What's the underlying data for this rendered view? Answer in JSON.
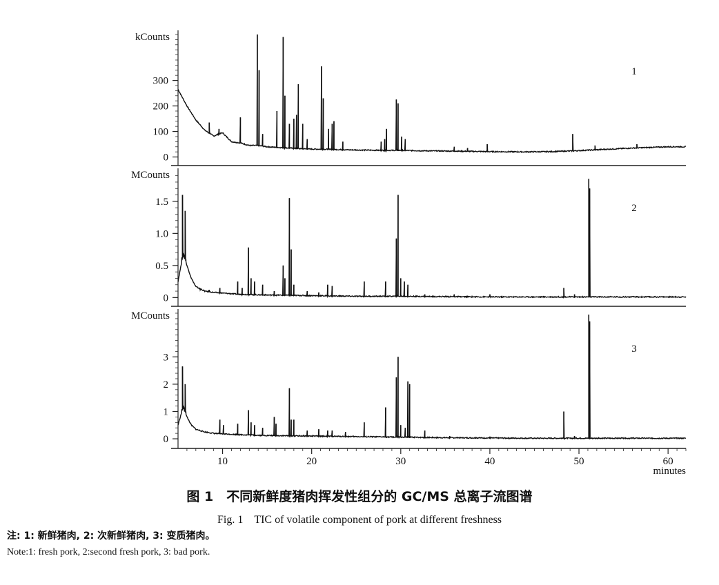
{
  "figure": {
    "caption_cn": "图 1　不同新鲜度猪肉挥发性组分的 GC/MS 总离子流图谱",
    "caption_en": "Fig. 1　TIC of volatile component of pork at different freshness",
    "note_cn": "注: 1: 新鲜猪肉, 2: 次新鲜猪肉, 3: 变质猪肉。",
    "note_en": "Note:1: fresh pork, 2:second fresh pork, 3: bad pork."
  },
  "chart_data": [
    {
      "type": "line",
      "panel_label": "1",
      "ylabel": "kCounts",
      "xlabel": "",
      "xlim": [
        5,
        62
      ],
      "ylim": [
        -12,
        480
      ],
      "y_ticks": [
        0,
        100,
        200,
        300
      ],
      "x_ticks": [],
      "clipped_at_top": true,
      "baseline": [
        [
          5,
          265
        ],
        [
          6,
          200
        ],
        [
          7,
          145
        ],
        [
          8,
          105
        ],
        [
          9,
          82
        ],
        [
          10,
          95
        ],
        [
          11,
          60
        ],
        [
          12,
          55
        ],
        [
          13,
          45
        ],
        [
          14,
          45
        ],
        [
          15,
          40
        ],
        [
          16,
          38
        ],
        [
          17,
          36
        ],
        [
          18,
          34
        ],
        [
          19,
          32
        ],
        [
          20,
          31
        ],
        [
          22,
          30
        ],
        [
          24,
          28
        ],
        [
          26,
          27
        ],
        [
          28,
          26
        ],
        [
          30,
          26
        ],
        [
          33,
          24
        ],
        [
          36,
          23
        ],
        [
          40,
          21
        ],
        [
          44,
          20
        ],
        [
          47,
          21
        ],
        [
          50,
          25
        ],
        [
          53,
          30
        ],
        [
          56,
          35
        ],
        [
          60,
          40
        ],
        [
          62,
          40
        ]
      ],
      "peaks": [
        [
          8.5,
          135
        ],
        [
          9.6,
          110
        ],
        [
          12.0,
          155
        ],
        [
          13.9,
          480
        ],
        [
          14.1,
          340
        ],
        [
          14.5,
          90
        ],
        [
          16.1,
          180
        ],
        [
          16.8,
          470
        ],
        [
          17.0,
          240
        ],
        [
          17.5,
          130
        ],
        [
          18.0,
          150
        ],
        [
          18.3,
          165
        ],
        [
          18.5,
          285
        ],
        [
          19.0,
          130
        ],
        [
          19.5,
          70
        ],
        [
          21.1,
          355
        ],
        [
          21.3,
          230
        ],
        [
          21.9,
          110
        ],
        [
          22.3,
          130
        ],
        [
          22.5,
          140
        ],
        [
          23.5,
          60
        ],
        [
          27.8,
          60
        ],
        [
          28.2,
          70
        ],
        [
          28.4,
          110
        ],
        [
          29.5,
          225
        ],
        [
          29.7,
          210
        ],
        [
          30.1,
          80
        ],
        [
          30.5,
          70
        ],
        [
          36.0,
          40
        ],
        [
          37.5,
          35
        ],
        [
          39.7,
          50
        ],
        [
          49.3,
          90
        ],
        [
          51.8,
          45
        ],
        [
          56.5,
          50
        ]
      ]
    },
    {
      "type": "line",
      "panel_label": "2",
      "ylabel": "MCounts",
      "xlabel": "",
      "xlim": [
        5,
        62
      ],
      "ylim": [
        -0.05,
        1.95
      ],
      "y_ticks": [
        0,
        0.5,
        1.0,
        1.5
      ],
      "x_ticks": [],
      "baseline": [
        [
          5,
          0.25
        ],
        [
          5.6,
          0.7
        ],
        [
          6,
          0.5
        ],
        [
          6.5,
          0.3
        ],
        [
          7,
          0.17
        ],
        [
          8,
          0.1
        ],
        [
          9,
          0.08
        ],
        [
          10,
          0.07
        ],
        [
          12,
          0.05
        ],
        [
          15,
          0.04
        ],
        [
          20,
          0.03
        ],
        [
          25,
          0.02
        ],
        [
          30,
          0.02
        ],
        [
          40,
          0.01
        ],
        [
          50,
          0.01
        ],
        [
          62,
          0.01
        ]
      ],
      "peaks": [
        [
          5.5,
          1.6
        ],
        [
          5.8,
          1.35
        ],
        [
          7.5,
          0.12
        ],
        [
          8.5,
          0.12
        ],
        [
          9.7,
          0.15
        ],
        [
          11.7,
          0.25
        ],
        [
          12.2,
          0.15
        ],
        [
          12.9,
          0.78
        ],
        [
          13.2,
          0.3
        ],
        [
          13.6,
          0.25
        ],
        [
          14.5,
          0.2
        ],
        [
          15.8,
          0.1
        ],
        [
          16.8,
          0.5
        ],
        [
          17.0,
          0.3
        ],
        [
          17.5,
          1.55
        ],
        [
          17.7,
          0.75
        ],
        [
          18.0,
          0.2
        ],
        [
          19.5,
          0.1
        ],
        [
          20.8,
          0.08
        ],
        [
          21.8,
          0.2
        ],
        [
          22.3,
          0.18
        ],
        [
          25.9,
          0.25
        ],
        [
          28.3,
          0.25
        ],
        [
          29.5,
          0.92
        ],
        [
          29.7,
          1.6
        ],
        [
          30.0,
          0.3
        ],
        [
          30.4,
          0.25
        ],
        [
          30.8,
          0.2
        ],
        [
          32.7,
          0.05
        ],
        [
          36.0,
          0.05
        ],
        [
          40.0,
          0.05
        ],
        [
          48.3,
          0.15
        ],
        [
          49.5,
          0.05
        ],
        [
          51.1,
          1.85
        ],
        [
          51.2,
          1.7
        ]
      ]
    },
    {
      "type": "line",
      "panel_label": "3",
      "ylabel": "MCounts",
      "xlabel": "minutes",
      "xlim": [
        5,
        62
      ],
      "ylim": [
        -0.15,
        4.6
      ],
      "y_ticks": [
        0,
        1,
        2,
        3
      ],
      "x_ticks": [
        10,
        20,
        30,
        40,
        50,
        60
      ],
      "baseline": [
        [
          5,
          0.5
        ],
        [
          5.6,
          1.2
        ],
        [
          6,
          0.8
        ],
        [
          6.5,
          0.5
        ],
        [
          7,
          0.35
        ],
        [
          8,
          0.25
        ],
        [
          9,
          0.2
        ],
        [
          10,
          0.18
        ],
        [
          12,
          0.15
        ],
        [
          15,
          0.12
        ],
        [
          20,
          0.1
        ],
        [
          25,
          0.08
        ],
        [
          30,
          0.06
        ],
        [
          35,
          0.04
        ],
        [
          40,
          0.03
        ],
        [
          45,
          0.02
        ],
        [
          50,
          0.02
        ],
        [
          62,
          0.02
        ]
      ],
      "peaks": [
        [
          5.5,
          2.65
        ],
        [
          5.8,
          2.0
        ],
        [
          9.7,
          0.7
        ],
        [
          10.1,
          0.5
        ],
        [
          11.7,
          0.55
        ],
        [
          12.9,
          1.05
        ],
        [
          13.2,
          0.6
        ],
        [
          13.6,
          0.5
        ],
        [
          14.5,
          0.4
        ],
        [
          15.8,
          0.8
        ],
        [
          16.0,
          0.55
        ],
        [
          17.5,
          1.85
        ],
        [
          17.7,
          0.7
        ],
        [
          18.0,
          0.7
        ],
        [
          19.5,
          0.3
        ],
        [
          20.8,
          0.35
        ],
        [
          21.8,
          0.3
        ],
        [
          22.3,
          0.3
        ],
        [
          23.8,
          0.25
        ],
        [
          25.9,
          0.6
        ],
        [
          28.3,
          1.15
        ],
        [
          29.5,
          2.25
        ],
        [
          29.7,
          3.0
        ],
        [
          30.0,
          0.5
        ],
        [
          30.5,
          0.4
        ],
        [
          30.8,
          2.1
        ],
        [
          31.0,
          2.0
        ],
        [
          32.7,
          0.3
        ],
        [
          35.5,
          0.1
        ],
        [
          40.0,
          0.08
        ],
        [
          48.3,
          1.0
        ],
        [
          49.5,
          0.1
        ],
        [
          51.1,
          4.55
        ],
        [
          51.2,
          4.3
        ]
      ]
    }
  ]
}
